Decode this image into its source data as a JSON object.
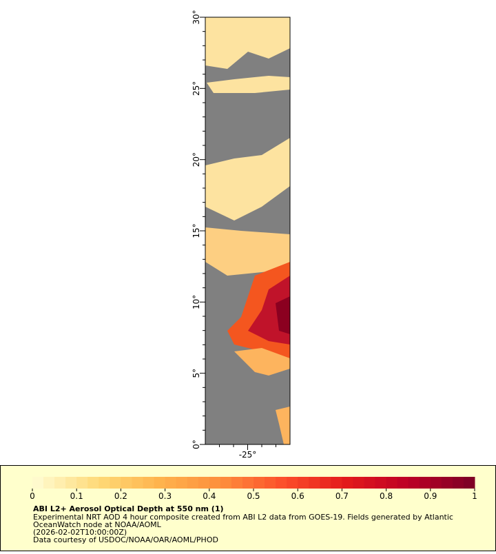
{
  "map": {
    "lat_lim": [
      0,
      30
    ],
    "lon_lim": [
      -28,
      -22
    ],
    "yticks": [
      {
        "value": 0,
        "label": "0°"
      },
      {
        "value": 5,
        "label": "5°"
      },
      {
        "value": 10,
        "label": "10°"
      },
      {
        "value": 15,
        "label": "15°"
      },
      {
        "value": 20,
        "label": "20°"
      },
      {
        "value": 25,
        "label": "25°"
      },
      {
        "value": 30,
        "label": "30°"
      }
    ],
    "yminorticks": [
      1,
      2,
      3,
      4,
      6,
      7,
      8,
      9,
      11,
      12,
      13,
      14,
      16,
      17,
      18,
      19,
      21,
      22,
      23,
      24,
      26,
      27,
      28,
      29
    ],
    "xticks": [
      {
        "value": -25,
        "label": "-25°"
      }
    ],
    "xminorticks": [
      -27,
      -26,
      -24,
      -23
    ]
  },
  "colorbar": {
    "lim": [
      0,
      1
    ],
    "ticks": [
      0,
      0.1,
      0.2,
      0.3,
      0.4,
      0.5,
      0.6,
      0.7,
      0.8,
      0.9,
      1
    ]
  },
  "caption": {
    "title": "ABI L2+ Aerosol Optical Depth at 550 nm (1)",
    "lines": [
      "Experimental NRT AOD 4 hour composite created from ABI L2 data from GOES-19. Fields generated by Atlantic",
      "OceanWatch node at NOAA/AOML",
      "(2026-02-02T10:00:00Z)",
      "Data courtesy of USDOC/NOAA/OAR/AOML/PHOD"
    ]
  }
}
